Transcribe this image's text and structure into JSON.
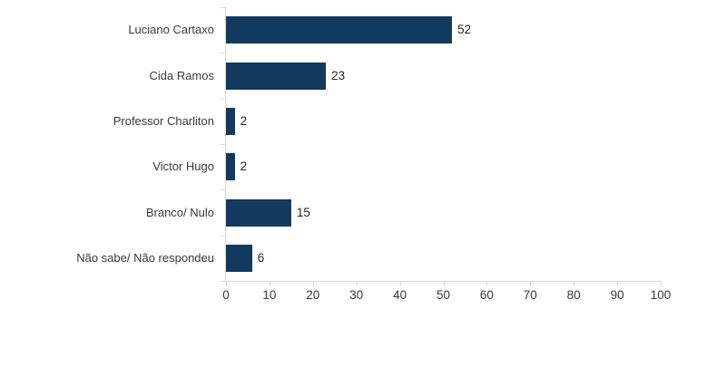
{
  "chart_data": {
    "type": "bar",
    "orientation": "horizontal",
    "title": "",
    "xlabel": "",
    "ylabel": "",
    "categories": [
      "Luciano Cartaxo",
      "Cida Ramos",
      "Professor Charliton",
      "Victor Hugo",
      "Branco/ Nulo",
      "Não sabe/ Não respondeu"
    ],
    "values": [
      52,
      23,
      2,
      2,
      15,
      6
    ],
    "data_labels": [
      "52",
      "23",
      "2",
      "2",
      "15",
      "6"
    ],
    "x_ticks": [
      "0",
      "10",
      "20",
      "30",
      "40",
      "50",
      "60",
      "70",
      "80",
      "90",
      "100"
    ],
    "xlim": [
      0,
      100
    ],
    "grid": false,
    "legend": "none",
    "colors": {
      "bar": "#123a5f",
      "axis": "#d9d9d9",
      "text": "#3a3a3a",
      "value_text": "#262626",
      "background": "#ffffff"
    }
  }
}
